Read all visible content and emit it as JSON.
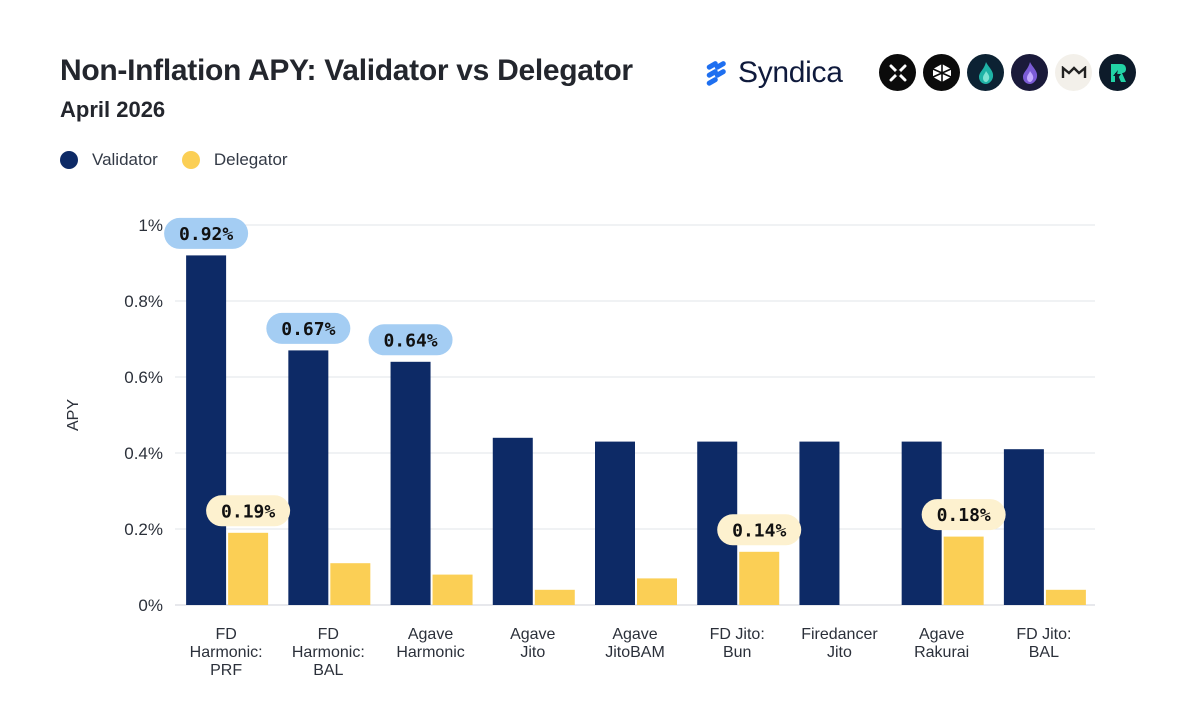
{
  "header": {
    "title": "Non-Inflation APY: Validator vs Delegator",
    "subtitle": "April 2026",
    "brand": "Syndica"
  },
  "logos": [
    "x-logo-icon",
    "cube-logo-icon",
    "teal-flame-icon",
    "purple-flame-icon",
    "wave-logo-icon",
    "r-logo-icon"
  ],
  "colors": {
    "validator": "#0d2a66",
    "delegator": "#fbcf55",
    "validator_pill": "#a4cdf3",
    "delegator_pill": "#fdf1cf",
    "grid": "#e2e4e8",
    "brand": "#1e6ff0"
  },
  "chart_data": {
    "type": "bar",
    "ylabel": "APY",
    "ylim": [
      0,
      1
    ],
    "yticks": [
      0,
      0.2,
      0.4,
      0.6,
      0.8,
      1.0
    ],
    "ytick_labels": [
      "0%",
      "0.2%",
      "0.4%",
      "0.6%",
      "0.8%",
      "1%"
    ],
    "legend_position": "top-left",
    "categories": [
      [
        "FD",
        "Harmonic:",
        "PRF"
      ],
      [
        "FD",
        "Harmonic:",
        "BAL"
      ],
      [
        "Agave",
        "Harmonic"
      ],
      [
        "Agave",
        "Jito"
      ],
      [
        "Agave",
        "JitoBAM"
      ],
      [
        "FD Jito:",
        "Bun"
      ],
      [
        "Firedancer",
        "Jito"
      ],
      [
        "Agave",
        "Rakurai"
      ],
      [
        "FD Jito:",
        "BAL"
      ]
    ],
    "series": [
      {
        "name": "Validator",
        "values": [
          0.92,
          0.67,
          0.64,
          0.44,
          0.43,
          0.43,
          0.43,
          0.43,
          0.41
        ],
        "labels": [
          "0.92%",
          "0.67%",
          "0.64%",
          "",
          "",
          "",
          "",
          "",
          ""
        ]
      },
      {
        "name": "Delegator",
        "values": [
          0.19,
          0.11,
          0.08,
          0.04,
          0.07,
          0.14,
          0.0,
          0.18,
          0.04
        ],
        "labels": [
          "0.19%",
          "",
          "",
          "",
          "",
          "0.14%",
          "",
          "0.18%",
          ""
        ]
      }
    ]
  }
}
